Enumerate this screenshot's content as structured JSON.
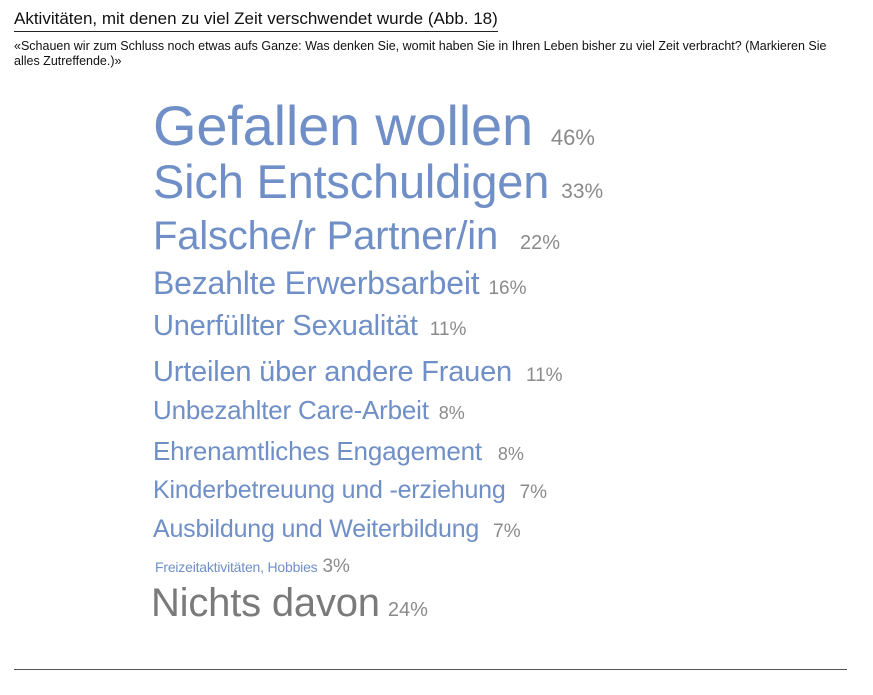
{
  "header": {
    "title": "Aktivitäten, mit denen zu viel Zeit verschwendet wurde  (Abb. 18)",
    "question": "«Schauen wir zum Schluss noch etwas aufs Ganze: Was denken Sie, womit haben Sie in Ihren Leben bisher zu viel Zeit verbracht? (Markieren Sie alles Zutreffende.)»"
  },
  "colors": {
    "label": "#6f8fc6",
    "label_none": "#7a7a7a",
    "percent": "#8a8a8a"
  },
  "chart_data": {
    "type": "word-cloud",
    "title": "Aktivitäten, mit denen zu viel Zeit verschwendet wurde  (Abb. 18)",
    "unit": "%",
    "items": [
      {
        "label": "Gefallen wollen",
        "value": 46,
        "value_label": "46%"
      },
      {
        "label": "Sich Entschuldigen",
        "value": 33,
        "value_label": "33%"
      },
      {
        "label": "Falsche/r Partner/in",
        "value": 22,
        "value_label": "22%"
      },
      {
        "label": "Bezahlte Erwerbsarbeit",
        "value": 16,
        "value_label": "16%"
      },
      {
        "label": "Unerfüllter Sexualität",
        "value": 11,
        "value_label": "11%"
      },
      {
        "label": "Urteilen über andere Frauen",
        "value": 11,
        "value_label": "11%"
      },
      {
        "label": "Unbezahlter Care-Arbeit",
        "value": 8,
        "value_label": "8%"
      },
      {
        "label": "Ehrenamtliches Engagement",
        "value": 8,
        "value_label": "8%"
      },
      {
        "label": "Kinderbetreuung und -erziehung",
        "value": 7,
        "value_label": "7%"
      },
      {
        "label": "Ausbildung und Weiterbildung",
        "value": 7,
        "value_label": "7%"
      },
      {
        "label": "Freizeitaktivitäten, Hobbies",
        "value": 3,
        "value_label": "3%"
      },
      {
        "label": "Nichts davon",
        "value": 24,
        "value_label": "24%"
      }
    ]
  }
}
